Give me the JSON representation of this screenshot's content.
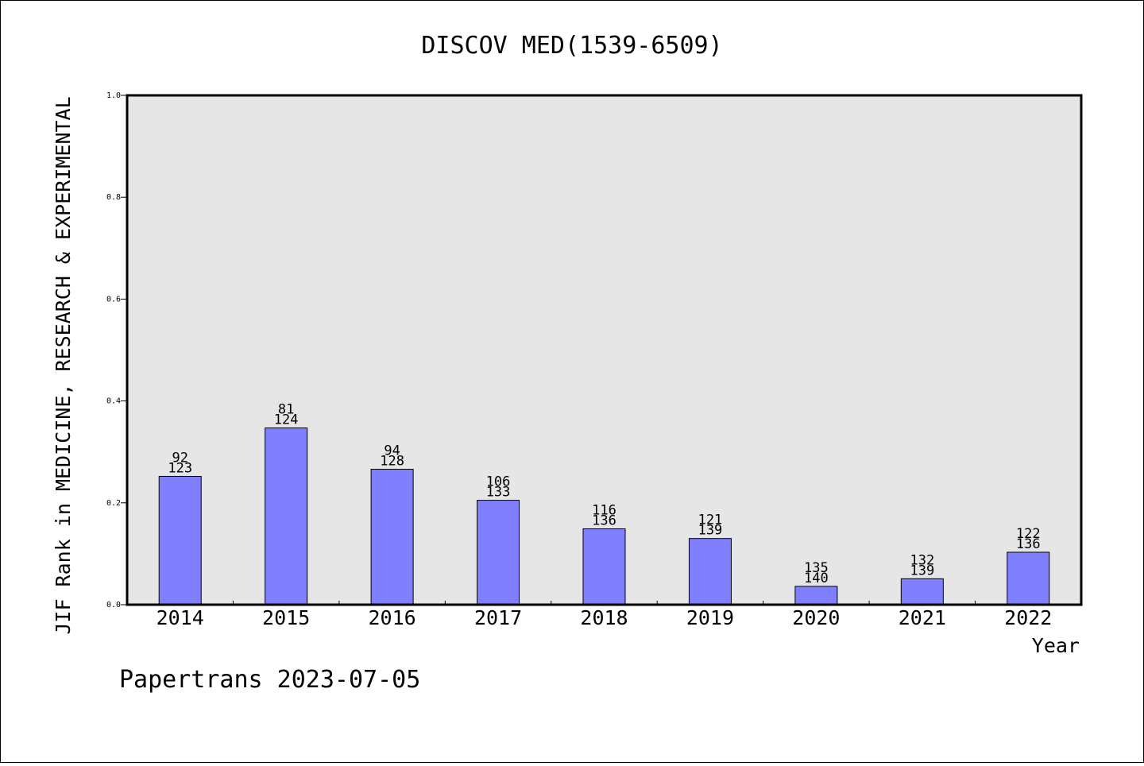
{
  "chart_data": {
    "type": "bar",
    "title": "DISCOV MED(1539-6509)",
    "xlabel": "Year",
    "ylabel": "JIF Rank in MEDICINE, RESEARCH & EXPERIMENTAL",
    "ylim": [
      0,
      1.0
    ],
    "yticks": [
      "0.0",
      "0.2",
      "0.4",
      "0.6",
      "0.8",
      "1.0"
    ],
    "categories": [
      "2014",
      "2015",
      "2016",
      "2017",
      "2018",
      "2019",
      "2020",
      "2021",
      "2022"
    ],
    "values": [
      0.252,
      0.347,
      0.266,
      0.205,
      0.149,
      0.13,
      0.036,
      0.051,
      0.103
    ],
    "rank": [
      "92",
      "81",
      "94",
      "106",
      "116",
      "121",
      "135",
      "132",
      "122"
    ],
    "total": [
      "123",
      "124",
      "128",
      "133",
      "136",
      "139",
      "140",
      "139",
      "136"
    ],
    "grid": false,
    "colors": {
      "bar": "#8080ff",
      "plot_bg": "#e6e6e6",
      "frame": "#000000"
    }
  },
  "footer": {
    "watermark": "Papertrans 2023-07-05"
  }
}
